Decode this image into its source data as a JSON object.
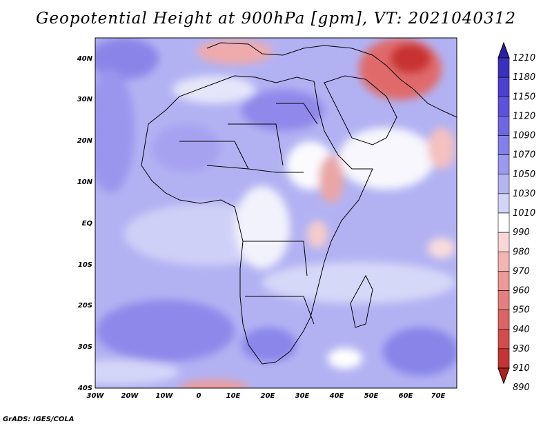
{
  "title": "Geopotential Height at 900hPa [gpm], VT: 2021040312",
  "credit": "GrADS: IGES/COLA",
  "lat_labels": [
    "40N",
    "30N",
    "20N",
    "10N",
    "EQ",
    "10S",
    "20S",
    "30S",
    "40S"
  ],
  "lon_labels": [
    "30W",
    "20W",
    "10W",
    "0",
    "10E",
    "20E",
    "30E",
    "40E",
    "50E",
    "60E",
    "70E"
  ],
  "colorbar": {
    "labels": [
      "1210",
      "1180",
      "1150",
      "1120",
      "1090",
      "1070",
      "1050",
      "1030",
      "1010",
      "990",
      "980",
      "970",
      "960",
      "950",
      "940",
      "930",
      "910",
      "890"
    ],
    "colors": [
      "#2a20a8",
      "#3a30c0",
      "#4b40d2",
      "#5c52de",
      "#6e66e4",
      "#8480ea",
      "#9a98ef",
      "#b4b4f3",
      "#d2d4f8",
      "#ffffff",
      "#fad6d6",
      "#f4b4b4",
      "#ee9898",
      "#e67e7e",
      "#de6464",
      "#d24c4c",
      "#c43434",
      "#b01e1e"
    ]
  },
  "colors": {
    "ocean_base": "#aeaef2",
    "land_base": "#c8c8f5",
    "high_blue": "#8a84e8",
    "low_red": "#d84848",
    "border": "#000000"
  }
}
